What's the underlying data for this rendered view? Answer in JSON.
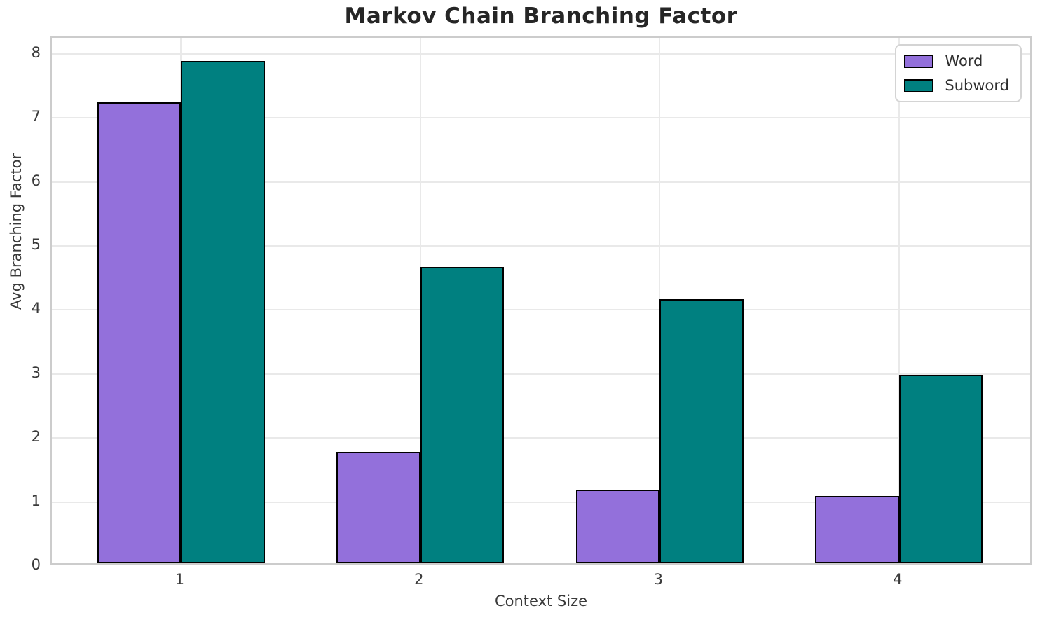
{
  "chart_data": {
    "type": "bar",
    "title": "Markov Chain Branching Factor",
    "xlabel": "Context Size",
    "ylabel": "Avg Branching Factor",
    "categories": [
      "1",
      "2",
      "3",
      "4"
    ],
    "series": [
      {
        "name": "Word",
        "color": "#9370db",
        "values": [
          7.2,
          1.74,
          1.15,
          1.05
        ]
      },
      {
        "name": "Subword",
        "color": "#008080",
        "values": [
          7.85,
          4.63,
          4.12,
          2.94
        ]
      }
    ],
    "ylim": [
      0,
      8.25
    ],
    "yticks": [
      0,
      1,
      2,
      3,
      4,
      5,
      6,
      7,
      8
    ],
    "xlim": [
      0.46,
      4.56
    ],
    "bar_width": 0.35,
    "bar_edge_color": "#000000",
    "grid": true,
    "gridline_color": "#e9e9e9",
    "legend_position": "upper right"
  }
}
